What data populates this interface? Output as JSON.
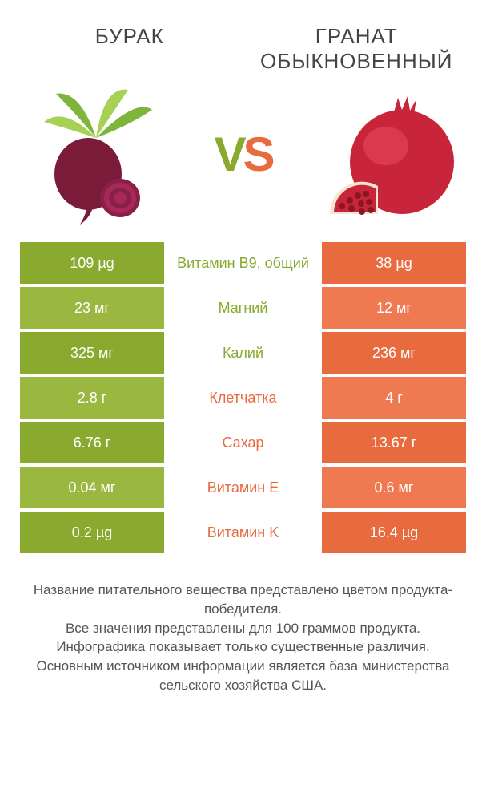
{
  "header": {
    "left_title": "БУРАК",
    "right_title": "ГРАНАТ ОБЫКНОВЕННЫЙ"
  },
  "vs": {
    "v": "V",
    "s": "S"
  },
  "colors": {
    "left": "#8aa92f",
    "right": "#e86a3f",
    "left_alt": "#9ab83f",
    "right_alt": "#ef7a52",
    "mid_green": "#8aa92f",
    "mid_orange": "#e86a3f",
    "beet_body": "#7a1b3a",
    "beet_leaf": "#7fb53a",
    "beet_leaf2": "#a6d154",
    "pome_body": "#c9253a",
    "pome_hi": "#e44a5b",
    "pome_seed": "#b01c2e"
  },
  "rows": [
    {
      "left": "109 µg",
      "label": "Витамин B9, общий",
      "right": "38 µg",
      "winner": "left"
    },
    {
      "left": "23 мг",
      "label": "Магний",
      "right": "12 мг",
      "winner": "left"
    },
    {
      "left": "325 мг",
      "label": "Калий",
      "right": "236 мг",
      "winner": "left"
    },
    {
      "left": "2.8 г",
      "label": "Клетчатка",
      "right": "4 г",
      "winner": "right"
    },
    {
      "left": "6.76 г",
      "label": "Сахар",
      "right": "13.67 г",
      "winner": "right"
    },
    {
      "left": "0.04 мг",
      "label": "Витамин E",
      "right": "0.6 мг",
      "winner": "right"
    },
    {
      "left": "0.2 µg",
      "label": "Витамин K",
      "right": "16.4 µg",
      "winner": "right"
    }
  ],
  "footer": {
    "line1": "Название питательного вещества представлено цветом продукта-победителя.",
    "line2": "Все значения представлены для 100 граммов продукта.",
    "line3": "Инфографика показывает только существенные различия.",
    "line4": "Основным источником информации является база министерства сельского хозяйства США."
  }
}
